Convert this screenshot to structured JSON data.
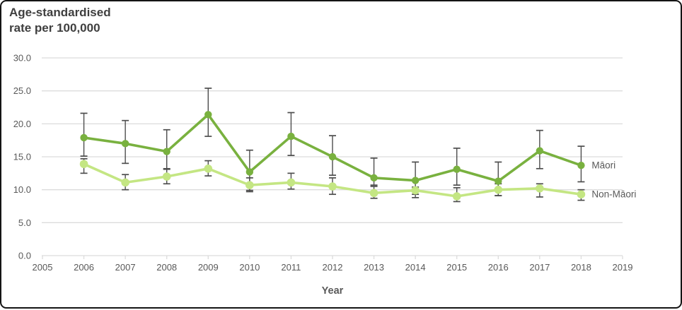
{
  "chart_data": {
    "type": "line",
    "title": "Age-standardised rate per 100,000",
    "title_lines": [
      "Age-standardised",
      "rate per 100,000"
    ],
    "xlabel": "Year",
    "ylabel": "Age-standardised rate per 100,000",
    "xlim": [
      2005,
      2019
    ],
    "ylim": [
      0,
      30
    ],
    "x_axis_ticks": [
      2005,
      2006,
      2007,
      2008,
      2009,
      2010,
      2011,
      2012,
      2013,
      2014,
      2015,
      2016,
      2017,
      2018,
      2019
    ],
    "y_axis_ticks": [
      "0.0",
      "5.0",
      "10.0",
      "15.0",
      "20.0",
      "25.0",
      "30.0"
    ],
    "y_tick_values": [
      0,
      5,
      10,
      15,
      20,
      25,
      30
    ],
    "grid": "horizontal",
    "error_bars": true,
    "legend_position": "right of last data points",
    "x": [
      2006,
      2007,
      2008,
      2009,
      2010,
      2011,
      2012,
      2013,
      2014,
      2015,
      2016,
      2017,
      2018
    ],
    "series": [
      {
        "name": "Māori",
        "color": "#79B13F",
        "values": [
          17.9,
          17.0,
          15.8,
          21.4,
          12.7,
          18.1,
          15.0,
          11.8,
          11.4,
          13.1,
          11.3,
          15.9,
          13.7
        ],
        "ci_low": [
          15.1,
          14.0,
          13.2,
          18.1,
          9.7,
          15.2,
          12.2,
          10.7,
          9.3,
          10.7,
          9.1,
          13.2,
          11.2
        ],
        "ci_high": [
          21.6,
          20.5,
          19.1,
          25.4,
          16.0,
          21.7,
          18.2,
          14.8,
          14.2,
          16.3,
          14.2,
          19.0,
          16.6
        ]
      },
      {
        "name": "Non-Māori",
        "color": "#C4E683",
        "values": [
          13.9,
          11.1,
          12.0,
          13.2,
          10.7,
          11.1,
          10.5,
          9.5,
          9.9,
          9.0,
          10.0,
          10.2,
          9.3
        ],
        "ci_low": [
          12.5,
          10.0,
          10.9,
          12.1,
          9.9,
          10.1,
          9.3,
          8.7,
          8.8,
          8.2,
          9.1,
          8.9,
          8.4
        ],
        "ci_high": [
          14.7,
          12.3,
          13.1,
          14.4,
          11.8,
          12.5,
          11.8,
          10.5,
          10.4,
          10.3,
          10.9,
          10.9,
          10.0
        ]
      }
    ]
  },
  "theme": {
    "grid_color": "#DCDCDC",
    "axis_color": "#DCDCDC",
    "error_bar_color": "#4D4D4D",
    "tick_label_color": "#595959",
    "legend_label_color": "#595959",
    "title_color": "#3F3F3F",
    "frame_border_color": "#141414",
    "background": "#FFFFFF"
  }
}
